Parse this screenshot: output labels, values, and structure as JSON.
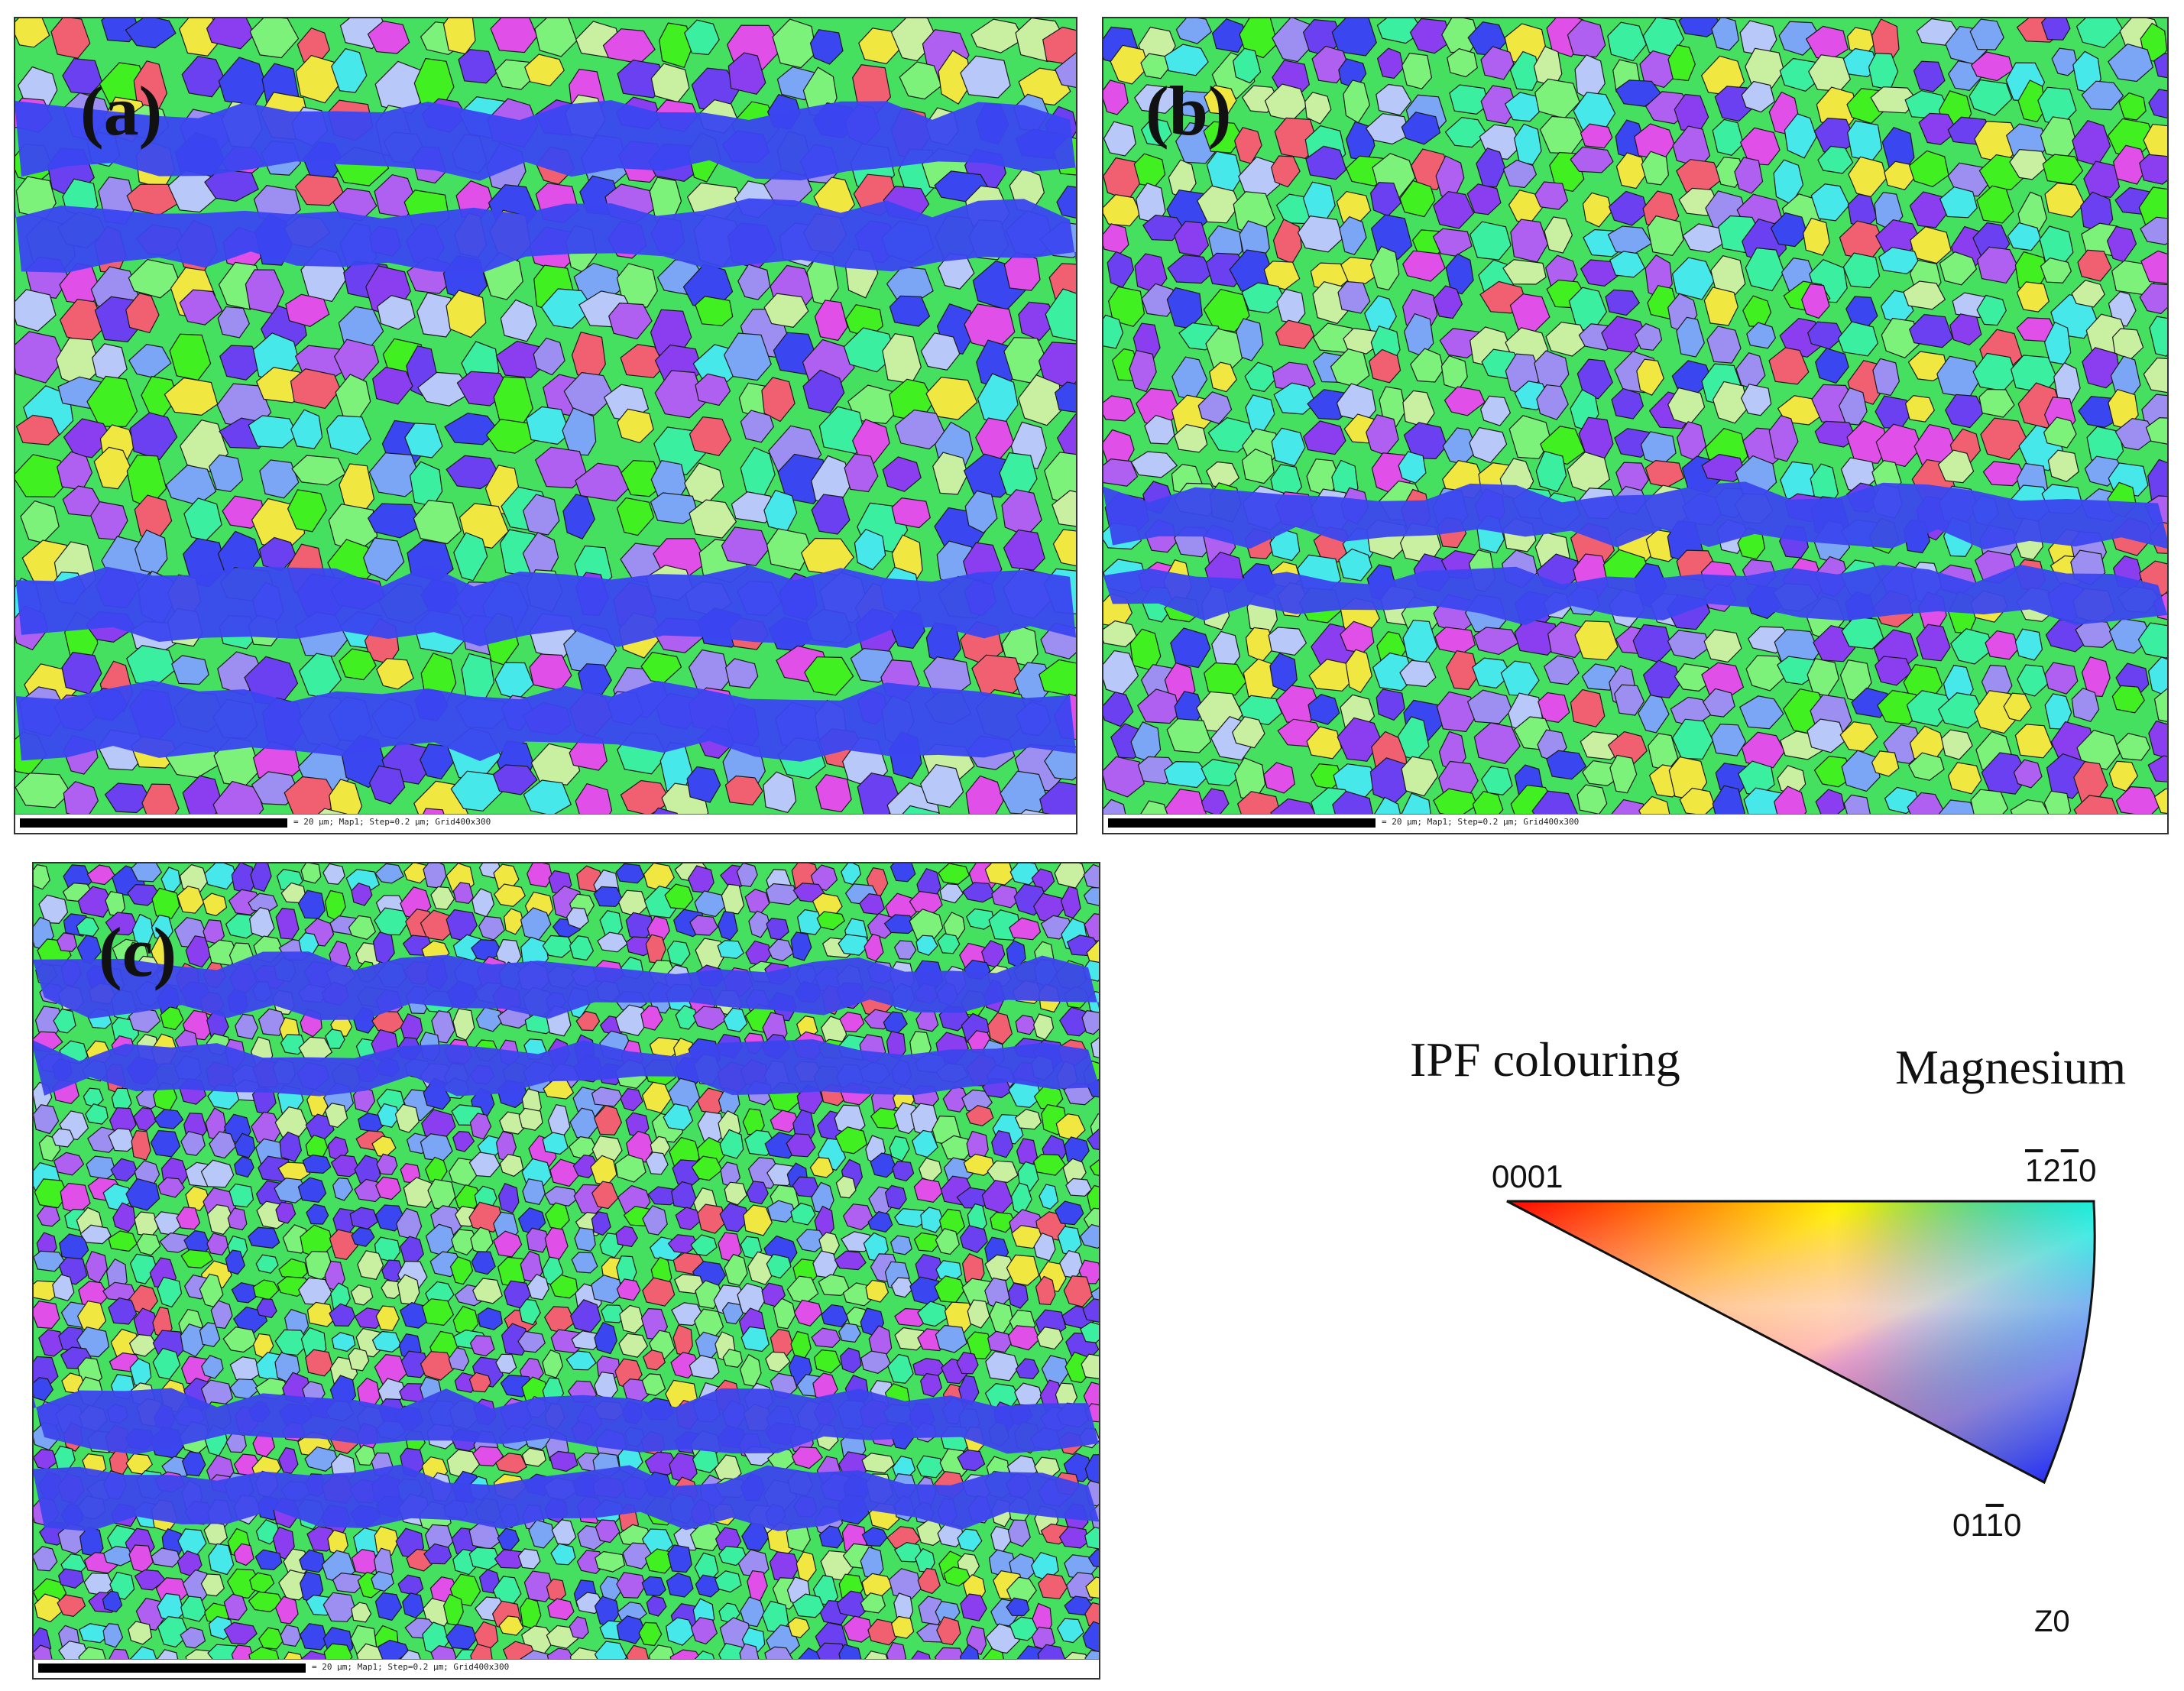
{
  "panels": [
    {
      "label": "(a)",
      "scale_text": "= 20 µm; Map1; Step=0.2 µm; Grid400x300",
      "band_color": "#3a46f0"
    },
    {
      "label": "(b)",
      "scale_text": "= 20 µm; Map1; Step=0.2 µm; Grid400x300",
      "band_color": "#3b47ee"
    },
    {
      "label": "(c)",
      "scale_text": "= 20 µm; Map1; Step=0.2 µm; Grid400x300",
      "band_color": "#3c44ec"
    }
  ],
  "legend": {
    "heading": "IPF colouring",
    "material": "Magnesium",
    "corners": {
      "basal": "0001",
      "prism_a_digits": [
        "1",
        "2",
        "1",
        "0"
      ],
      "prism_m_digits": [
        "0",
        "1",
        "1",
        "0"
      ]
    },
    "axis": "Z0",
    "colors": {
      "basal": "#ff0000",
      "prism_a": "#00ff00",
      "prism_m": "#0000ff",
      "mid": "#ffffff"
    }
  },
  "grain_palette": [
    "#40f020",
    "#7cf27a",
    "#3af0a0",
    "#46e8ea",
    "#7aa6f5",
    "#9d8ff2",
    "#6a40f0",
    "#8a3ef0",
    "#b060f0",
    "#e050e8",
    "#f06070",
    "#f0e840",
    "#c8f0a0",
    "#b8c8f8",
    "#3a46f0"
  ]
}
